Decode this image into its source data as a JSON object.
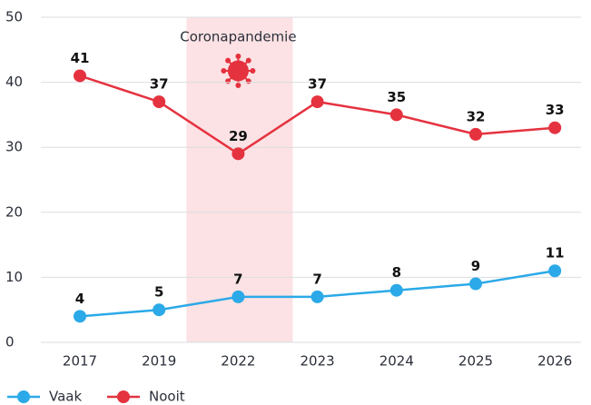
{
  "chart_data": {
    "type": "line",
    "categories": [
      "2017",
      "2019",
      "2022",
      "2023",
      "2024",
      "2025",
      "2026"
    ],
    "series": [
      {
        "name": "Vaak",
        "color": "#2ba9e8",
        "values": [
          4,
          5,
          7,
          7,
          8,
          9,
          11
        ]
      },
      {
        "name": "Nooit",
        "color": "#e5323f",
        "values": [
          41,
          37,
          29,
          37,
          35,
          32,
          33
        ]
      }
    ],
    "ylim": [
      0,
      50
    ],
    "yticks": [
      0,
      10,
      20,
      30,
      40,
      50
    ],
    "grid": true,
    "annotation": {
      "text": "Coronapandemie",
      "x": "2022"
    },
    "legend": "bottom"
  }
}
